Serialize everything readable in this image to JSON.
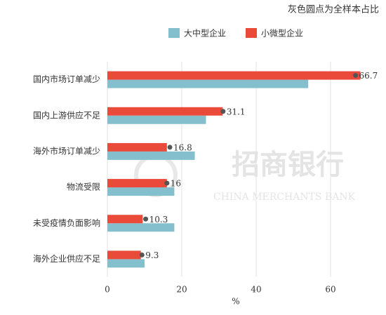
{
  "chart_data": {
    "type": "hbar",
    "note": "灰色圆点为全样本占比",
    "watermark": "招商银行",
    "watermark_sub": "CHINA MERCHANTS BANK",
    "xlabel": "%",
    "categories": [
      "国内市场订单减少",
      "国内上游供应不足",
      "海外市场订单减少",
      "物流受限",
      "未受疫情负面影响",
      "海外企业供应不足"
    ],
    "series": [
      {
        "name": "大中型企业",
        "color": "#83bfcc",
        "values": [
          54,
          26.5,
          23.5,
          18,
          18,
          10
        ]
      },
      {
        "name": "小微型企业",
        "color": "#ea4a3a",
        "values": [
          68,
          31,
          16,
          16,
          9.5,
          9
        ]
      }
    ],
    "overall": {
      "color": "#555555",
      "values": [
        66.7,
        31.1,
        16.8,
        16,
        10.3,
        9.3
      ]
    },
    "xlim": [
      0,
      70
    ],
    "xticks": [
      0,
      20,
      40,
      60
    ],
    "grid": true
  }
}
